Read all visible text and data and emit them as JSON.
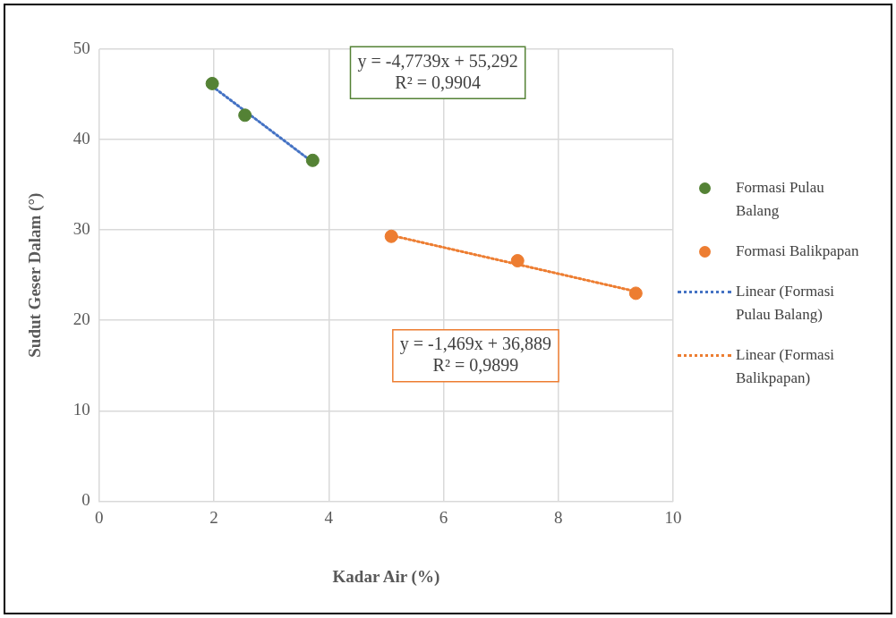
{
  "chart_data": {
    "type": "scatter",
    "xlabel": "Kadar Air (%)",
    "ylabel": "Sudut Geser Dalam (°)",
    "xlim": [
      0,
      10
    ],
    "ylim": [
      0,
      50
    ],
    "xticks": [
      0,
      2,
      4,
      6,
      8,
      10
    ],
    "yticks": [
      0,
      10,
      20,
      30,
      40,
      50
    ],
    "grid": true,
    "legend": "right",
    "marker": "circle",
    "series": [
      {
        "name": "Formasi Pulau Balang",
        "color": "#548235",
        "x": [
          1.97,
          2.54,
          3.72
        ],
        "values": [
          46.2,
          42.7,
          37.7
        ]
      },
      {
        "name": "Formasi Balikpapan",
        "color": "#ed7d31",
        "x": [
          5.09,
          7.29,
          9.35
        ],
        "values": [
          29.3,
          26.6,
          23.0
        ]
      },
      {
        "name": "Linear (Formasi Pulau Balang)",
        "type": "line",
        "color": "#4472c4",
        "line_style": "dotted",
        "marker": "none",
        "x": [
          1.97,
          3.72
        ],
        "values": [
          45.9,
          37.5
        ]
      },
      {
        "name": "Linear (Formasi Balikpapan)",
        "type": "line",
        "color": "#ed7d31",
        "line_style": "dotted",
        "marker": "none",
        "x": [
          5.09,
          9.35
        ],
        "values": [
          29.4,
          23.2
        ]
      }
    ],
    "annotations": [
      "y = -4,7739x + 55,292\nR² = 0,9904",
      "y = -1,469x + 36,889\nR² = 0,9899"
    ]
  }
}
